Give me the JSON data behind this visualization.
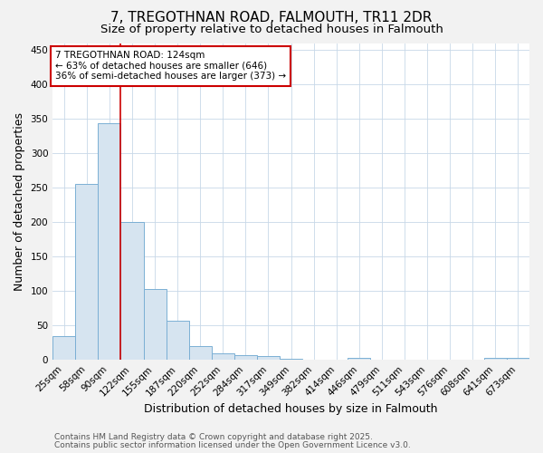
{
  "title": "7, TREGOTHNAN ROAD, FALMOUTH, TR11 2DR",
  "subtitle": "Size of property relative to detached houses in Falmouth",
  "xlabel": "Distribution of detached houses by size in Falmouth",
  "ylabel": "Number of detached properties",
  "categories": [
    "25sqm",
    "58sqm",
    "90sqm",
    "122sqm",
    "155sqm",
    "187sqm",
    "220sqm",
    "252sqm",
    "284sqm",
    "317sqm",
    "349sqm",
    "382sqm",
    "414sqm",
    "446sqm",
    "479sqm",
    "511sqm",
    "543sqm",
    "576sqm",
    "608sqm",
    "641sqm",
    "673sqm"
  ],
  "values": [
    35,
    255,
    343,
    200,
    103,
    57,
    20,
    10,
    7,
    5,
    2,
    0,
    0,
    3,
    0,
    0,
    0,
    0,
    0,
    3,
    3
  ],
  "bar_color": "#d6e4f0",
  "bar_edge_color": "#7bafd4",
  "property_line_x": 3.0,
  "annotation_text": "7 TREGOTHNAN ROAD: 124sqm\n← 63% of detached houses are smaller (646)\n36% of semi-detached houses are larger (373) →",
  "annotation_box_color": "#ffffff",
  "annotation_box_edge_color": "#cc0000",
  "footnote1": "Contains HM Land Registry data © Crown copyright and database right 2025.",
  "footnote2": "Contains public sector information licensed under the Open Government Licence v3.0.",
  "ylim": [
    0,
    460
  ],
  "yticks": [
    0,
    50,
    100,
    150,
    200,
    250,
    300,
    350,
    400,
    450
  ],
  "title_fontsize": 11,
  "subtitle_fontsize": 9.5,
  "axis_label_fontsize": 9,
  "tick_fontsize": 7.5,
  "annotation_fontsize": 7.5,
  "footnote_fontsize": 6.5,
  "background_color": "#f2f2f2",
  "plot_background_color": "#ffffff",
  "grid_color": "#c8d8e8"
}
